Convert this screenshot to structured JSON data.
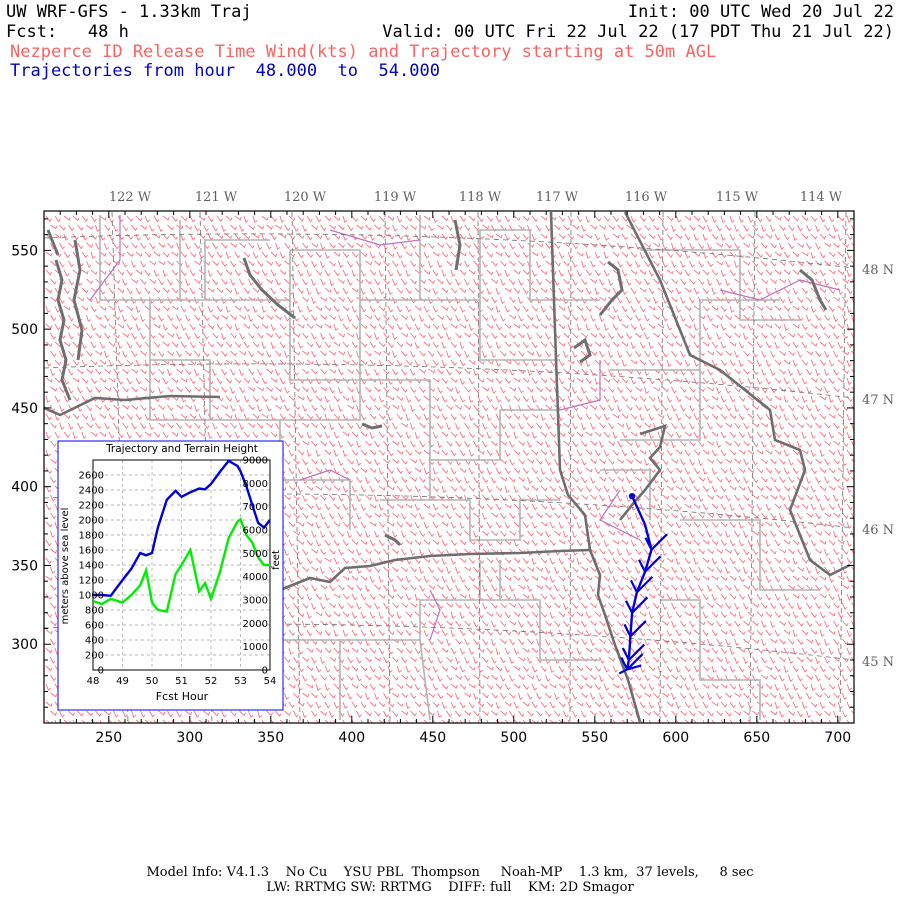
{
  "header": {
    "model": "UW WRF-GFS - 1.33km Traj",
    "init": "Init: 00 UTC Wed 20 Jul 22",
    "fcst_label": "Fcst:",
    "fcst_value": "48 h",
    "valid": "Valid: 00 UTC Fri 22 Jul 22 (17 PDT Thu 21 Jul 22)",
    "subtitle": "Nezperce ID Release Time Wind(kts) and Trajectory starting at 50m AGL",
    "traj_prefix": "Trajectories from hour",
    "traj_start": "48.000",
    "traj_to": "to",
    "traj_end": "54.000"
  },
  "colors": {
    "wind_barbs": "#ff6f7f",
    "county_lines": "#b4b4b4",
    "state_lines": "#6e6e6e",
    "water": "#6e6e6e",
    "boundary_purple": "#c070c0",
    "trajectory": "#0000dd",
    "terrain": "#00ee00",
    "lonlat_grid": "#707070",
    "title_red": "#ff6060",
    "title_blue": "#0000cc"
  },
  "map": {
    "top_labels": [
      "122 W",
      "121 W",
      "120 W",
      "119 W",
      "118 W",
      "117 W",
      "116 W",
      "115 W",
      "114 W"
    ],
    "right_labels": [
      "48 N",
      "47 N",
      "46 N",
      "45 N"
    ],
    "x_axis": {
      "min": 210,
      "max": 710,
      "ticks": [
        250,
        300,
        350,
        400,
        450,
        500,
        550,
        600,
        650,
        700
      ]
    },
    "y_axis": {
      "min": 250,
      "max": 575,
      "ticks": [
        300,
        350,
        400,
        450,
        500,
        550
      ]
    },
    "trajectory": [
      [
        573,
        394
      ],
      [
        581,
        376
      ],
      [
        585,
        360
      ],
      [
        581,
        346
      ],
      [
        576,
        333
      ],
      [
        573,
        320
      ],
      [
        572,
        305
      ],
      [
        571,
        290
      ],
      [
        570,
        284
      ]
    ]
  },
  "inset": {
    "title": "Trajectory and Terrain Height",
    "xlabel": "Fcst Hour",
    "ylabel_left": "meters above sea level",
    "ylabel_right": "feet"
  },
  "chart_data": {
    "type": "line",
    "title": "Trajectory and Terrain Height",
    "xlabel": "Fcst Hour",
    "ylabel": "meters above sea level",
    "y2label": "feet",
    "xlim": [
      48,
      54
    ],
    "ylim": [
      0,
      2800
    ],
    "y2lim": [
      0,
      9000
    ],
    "x_ticks": [
      48,
      49,
      50,
      51,
      52,
      53,
      54
    ],
    "y_ticks": [
      0,
      200,
      400,
      600,
      800,
      1000,
      1200,
      1400,
      1600,
      1800,
      2000,
      2200,
      2400,
      2600
    ],
    "y2_ticks": [
      0,
      1000,
      2000,
      3000,
      4000,
      5000,
      6000,
      7000,
      8000,
      9000
    ],
    "grid": true,
    "x": [
      48.0,
      48.3,
      48.6,
      49.0,
      49.3,
      49.6,
      49.8,
      50.0,
      50.2,
      50.5,
      50.8,
      51.0,
      51.3,
      51.6,
      51.8,
      52.0,
      52.3,
      52.6,
      52.9,
      53.0,
      53.2,
      53.4,
      53.6,
      53.8,
      54.0
    ],
    "series": [
      {
        "values": [
          1000,
          1000,
          990,
          1200,
          1350,
          1560,
          1530,
          1560,
          1900,
          2270,
          2390,
          2310,
          2370,
          2420,
          2410,
          2480,
          2640,
          2790,
          2720,
          2650,
          2450,
          2200,
          1960,
          1900,
          2000
        ]
      },
      {
        "values": [
          920,
          880,
          950,
          900,
          1000,
          1130,
          1330,
          900,
          800,
          780,
          1280,
          1400,
          1600,
          1050,
          1160,
          950,
          1300,
          1760,
          1980,
          2010,
          1800,
          1700,
          1500,
          1400,
          1400
        ]
      }
    ]
  },
  "footer": {
    "line1": "Model Info: V4.1.3    No Cu    YSU PBL  Thompson     Noah-MP    1.3 km,  37 levels,     8 sec",
    "line2": "LW: RRTMG SW: RRTMG    DIFF: full    KM: 2D Smagor"
  }
}
